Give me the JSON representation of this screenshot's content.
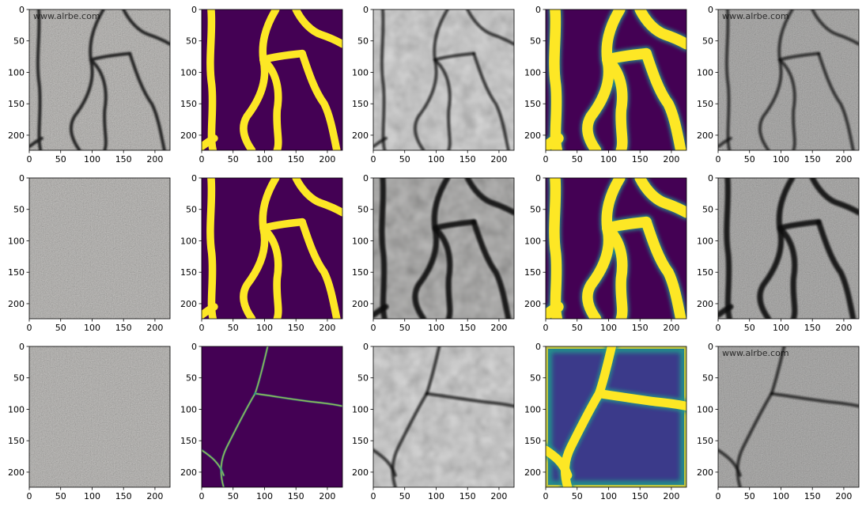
{
  "figure": {
    "rows": 3,
    "cols": 5,
    "watermark_text": "www.alrbe.com",
    "colors": {
      "viridis_low": "#440154",
      "viridis_mid": "#21918c",
      "viridis_high": "#fde725",
      "asphalt_base": "#a19e99",
      "crack_dark": "#1a1a1a"
    }
  },
  "chart_data": {
    "type": "heatmap",
    "description_kind": "image-grid",
    "shared_axes": {
      "x_ticks": [
        0,
        50,
        100,
        150,
        200
      ],
      "y_ticks": [
        0,
        50,
        100,
        150,
        200
      ],
      "xlim": [
        0,
        224
      ],
      "ylim": [
        224,
        0
      ]
    },
    "columns": [
      {
        "kind": "photo"
      },
      {
        "kind": "mask"
      },
      {
        "kind": "reconstruction"
      },
      {
        "kind": "heatmap"
      },
      {
        "kind": "reconstruction"
      }
    ],
    "rows": [
      {
        "watermark": [
          true,
          false,
          false,
          false,
          true
        ],
        "crack_set": "A"
      },
      {
        "watermark": [
          false,
          false,
          false,
          false,
          false
        ],
        "crack_set": "A"
      },
      {
        "watermark": [
          false,
          false,
          false,
          false,
          true
        ],
        "crack_set": "B"
      }
    ]
  }
}
